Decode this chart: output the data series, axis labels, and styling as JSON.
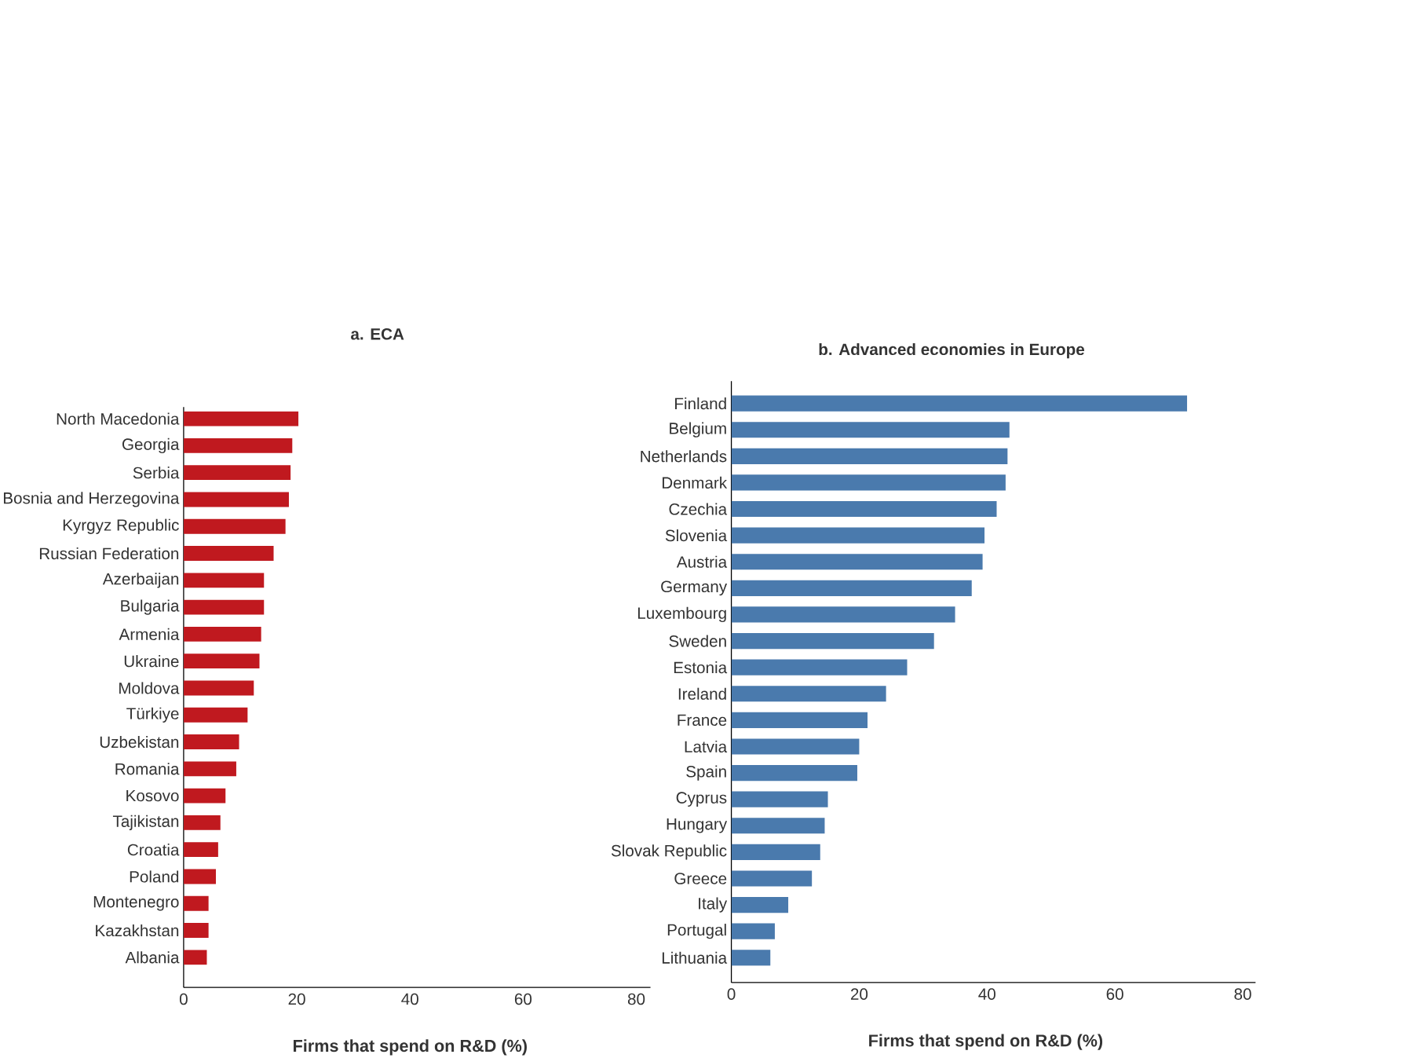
{
  "chart_data": [
    {
      "type": "bar",
      "orientation": "horizontal",
      "title": "a. ECA",
      "xlabel": "Firms that spend on R&D (%)",
      "color": "#c0191f",
      "xlim": [
        0,
        82.5
      ],
      "xticks": [
        0,
        20,
        40,
        60,
        80
      ],
      "categories": [
        "North Macedonia",
        "Georgia",
        "Serbia",
        "Bosnia and Herzegovina",
        "Kyrgyz Republic",
        "Russian Federation",
        "Azerbaijan",
        "Bulgaria",
        "Armenia",
        "Ukraine",
        "Moldova",
        "Türkiye",
        "Uzbekistan",
        "Romania",
        "Kosovo",
        "Tajikistan",
        "Croatia",
        "Poland",
        "Montenegro",
        "Kazakhstan",
        "Albania"
      ],
      "values": [
        20.3,
        19.2,
        18.9,
        18.6,
        18.0,
        15.9,
        14.2,
        14.2,
        13.7,
        13.4,
        12.4,
        11.3,
        9.8,
        9.3,
        7.4,
        6.5,
        6.1,
        5.7,
        4.4,
        4.4,
        4.1
      ]
    },
    {
      "type": "bar",
      "orientation": "horizontal",
      "title": "b. Advanced economies in Europe",
      "xlabel": "Firms that spend on R&D (%)",
      "color": "#4a7aad",
      "xlim": [
        0,
        82
      ],
      "xticks": [
        0,
        20,
        40,
        60,
        80
      ],
      "categories": [
        "Finland",
        "Belgium",
        "Netherlands",
        "Denmark",
        "Czechia",
        "Slovenia",
        "Austria",
        "Germany",
        "Luxembourg",
        "Sweden",
        "Estonia",
        "Ireland",
        "France",
        "Latvia",
        "Spain",
        "Cyprus",
        "Hungary",
        "Slovak Republic",
        "Greece",
        "Italy",
        "Portugal",
        "Lithuania"
      ],
      "values": [
        71.3,
        43.5,
        43.2,
        42.9,
        41.5,
        39.6,
        39.3,
        37.6,
        35.0,
        31.7,
        27.5,
        24.2,
        21.3,
        20.0,
        19.7,
        15.1,
        14.6,
        13.9,
        12.6,
        8.9,
        6.8,
        6.1
      ]
    }
  ]
}
